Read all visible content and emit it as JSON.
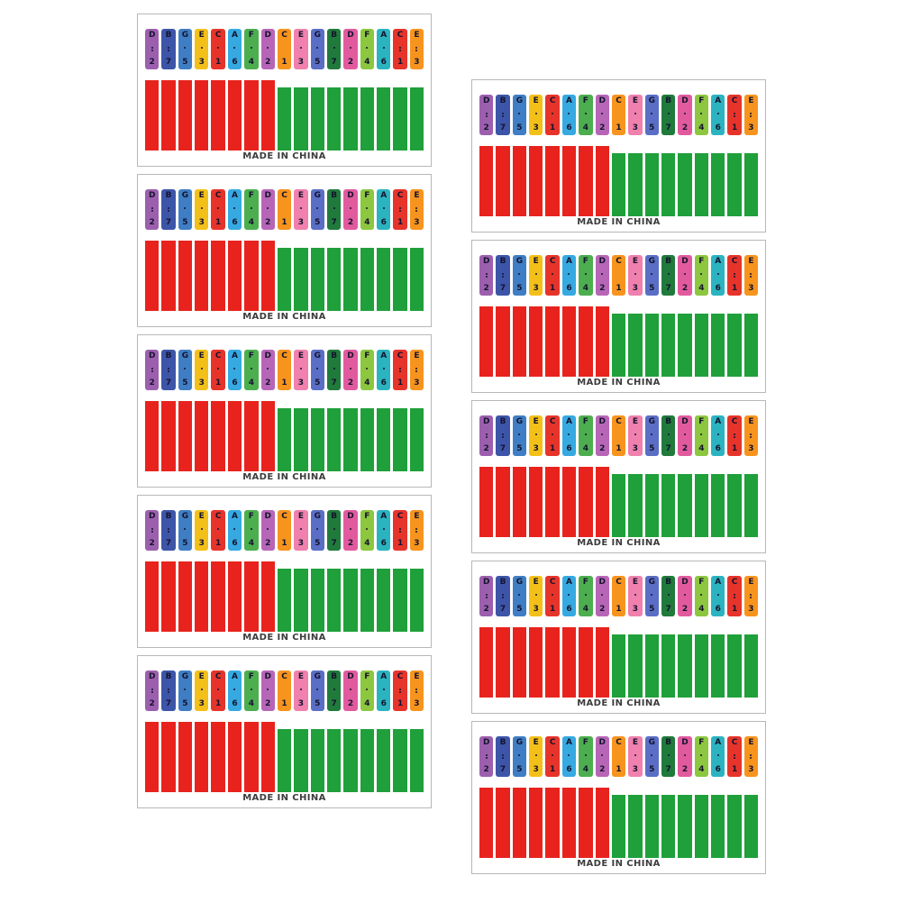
{
  "caption": "MADE IN CHINA",
  "columns": {
    "left_sheet_count": 5,
    "right_sheet_count": 5
  },
  "bar_colors": {
    "red": "#e8231d",
    "green": "#1fa03a"
  },
  "tab_text_color": "#14142e",
  "sheet_border_color": "#b8b8b8",
  "notes": [
    {
      "letter": "D",
      "dots": 2,
      "number": "2",
      "color": "#9c5fae",
      "bar": "red"
    },
    {
      "letter": "B",
      "dots": 2,
      "number": "7",
      "color": "#3d55a8",
      "bar": "red"
    },
    {
      "letter": "G",
      "dots": 1,
      "number": "5",
      "color": "#3f7ec4",
      "bar": "red"
    },
    {
      "letter": "E",
      "dots": 1,
      "number": "3",
      "color": "#f3c019",
      "bar": "red"
    },
    {
      "letter": "C",
      "dots": 1,
      "number": "1",
      "color": "#e6342b",
      "bar": "red"
    },
    {
      "letter": "A",
      "dots": 1,
      "number": "6",
      "color": "#36a9e1",
      "bar": "red"
    },
    {
      "letter": "F",
      "dots": 1,
      "number": "4",
      "color": "#4cae4f",
      "bar": "red"
    },
    {
      "letter": "D",
      "dots": 1,
      "number": "2",
      "color": "#b766b7",
      "bar": "red"
    },
    {
      "letter": "C",
      "dots": 0,
      "number": "1",
      "color": "#f7941e",
      "bar": "green"
    },
    {
      "letter": "E",
      "dots": 1,
      "number": "3",
      "color": "#f080ad",
      "bar": "green"
    },
    {
      "letter": "G",
      "dots": 1,
      "number": "5",
      "color": "#5a6ec5",
      "bar": "green"
    },
    {
      "letter": "B",
      "dots": 1,
      "number": "7",
      "color": "#207a3c",
      "bar": "green"
    },
    {
      "letter": "D",
      "dots": 1,
      "number": "2",
      "color": "#e25a9e",
      "bar": "green"
    },
    {
      "letter": "F",
      "dots": 1,
      "number": "4",
      "color": "#8dc63f",
      "bar": "green"
    },
    {
      "letter": "A",
      "dots": 1,
      "number": "6",
      "color": "#2bb3c0",
      "bar": "green"
    },
    {
      "letter": "C",
      "dots": 2,
      "number": "1",
      "color": "#e6342b",
      "bar": "green"
    },
    {
      "letter": "E",
      "dots": 2,
      "number": "3",
      "color": "#f7941e",
      "bar": "green"
    }
  ]
}
